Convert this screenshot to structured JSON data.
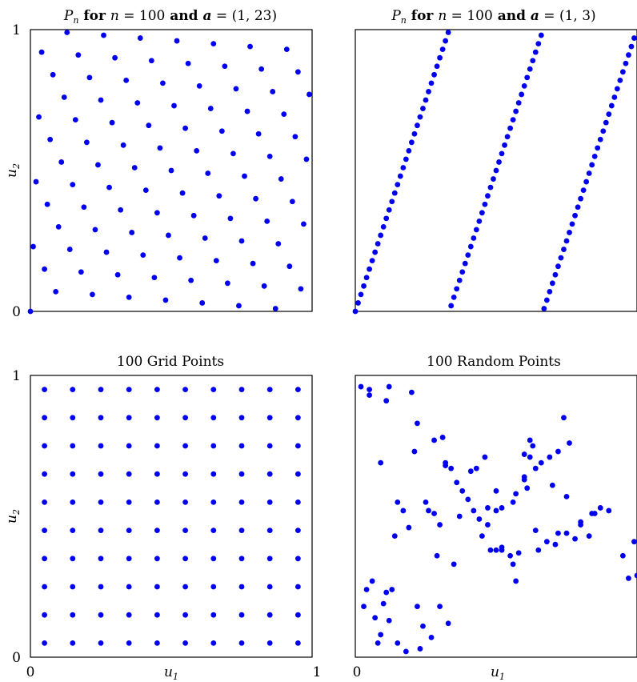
{
  "chart_data": [
    {
      "type": "scatter",
      "title": {
        "p": "P",
        "sub": "n",
        "for": " for ",
        "n": "n",
        "eq1": " = ",
        "nval": "100",
        "and": " and ",
        "a": "a",
        "eq2": " = ",
        "avec": "(1, 23)"
      },
      "xlabel": "",
      "ylabel": "u2",
      "xlim": [
        0,
        1
      ],
      "ylim": [
        0,
        1
      ],
      "xticks": [],
      "yticks": [
        "0",
        "1"
      ],
      "generator": {
        "n": 100,
        "a": [
          1,
          23
        ]
      },
      "grid": false,
      "legend": "none",
      "color": "#0000ee"
    },
    {
      "type": "scatter",
      "title": {
        "p": "P",
        "sub": "n",
        "for": " for ",
        "n": "n",
        "eq1": " = ",
        "nval": "100",
        "and": " and ",
        "a": "a",
        "eq2": " = ",
        "avec": "(1, 3)"
      },
      "xlabel": "",
      "ylabel": "",
      "xlim": [
        0,
        1
      ],
      "ylim": [
        0,
        1
      ],
      "xticks": [],
      "yticks": [],
      "generator": {
        "n": 100,
        "a": [
          1,
          3
        ]
      },
      "grid": false,
      "legend": "none",
      "color": "#0000ee"
    },
    {
      "type": "scatter",
      "title": {
        "text": "100 Grid Points"
      },
      "xlabel": "u1",
      "ylabel": "u2",
      "xlim": [
        0,
        1
      ],
      "ylim": [
        0,
        1
      ],
      "xticks": [
        "0",
        "1"
      ],
      "yticks": [
        "0",
        "1"
      ],
      "grid_axis_values": [
        0.05,
        0.15,
        0.25,
        0.35,
        0.45,
        0.55,
        0.65,
        0.75,
        0.85,
        0.95
      ],
      "grid": false,
      "legend": "none",
      "color": "#0000ee"
    },
    {
      "type": "scatter",
      "title": {
        "text": "100 Random Points"
      },
      "xlabel": "u1",
      "ylabel": "",
      "xlim": [
        0,
        1
      ],
      "ylim": [
        0,
        1
      ],
      "xticks": [
        "0"
      ],
      "yticks": [],
      "x": [
        0.02,
        0.05,
        0.05,
        0.12,
        0.11,
        0.09,
        0.15,
        0.17,
        0.19,
        0.21,
        0.22,
        0.2,
        0.28,
        0.31,
        0.32,
        0.34,
        0.36,
        0.38,
        0.41,
        0.4,
        0.42,
        0.3,
        0.28,
        0.26,
        0.25,
        0.14,
        0.06,
        0.04,
        0.03,
        0.13,
        0.1,
        0.07,
        0.22,
        0.11,
        0.12,
        0.09,
        0.08,
        0.15,
        0.18,
        0.23,
        0.27,
        0.24,
        0.33,
        0.3,
        0.35,
        0.37,
        0.44,
        0.47,
        0.5,
        0.52,
        0.55,
        0.58,
        0.57,
        0.6,
        0.6,
        0.61,
        0.64,
        0.66,
        0.63,
        0.62,
        0.69,
        0.7,
        0.72,
        0.74,
        0.76,
        0.75,
        0.8,
        0.85,
        0.83,
        0.84,
        0.87,
        0.9,
        0.95,
        1.0,
        0.97,
        0.99,
        0.8,
        0.78,
        0.75,
        0.72,
        0.71,
        0.68,
        0.65,
        0.64,
        0.56,
        0.52,
        0.5,
        0.52,
        0.48,
        0.45,
        0.47,
        0.5,
        0.56,
        0.57,
        0.6,
        0.62,
        0.46,
        0.43,
        0.32,
        0.29
      ],
      "y": [
        0.96,
        0.95,
        0.93,
        0.96,
        0.91,
        0.69,
        0.55,
        0.52,
        0.46,
        0.73,
        0.83,
        0.94,
        0.77,
        0.78,
        0.69,
        0.67,
        0.62,
        0.59,
        0.66,
        0.56,
        0.52,
        0.47,
        0.51,
        0.52,
        0.55,
        0.43,
        0.27,
        0.24,
        0.18,
        0.24,
        0.19,
        0.14,
        0.18,
        0.23,
        0.13,
        0.08,
        0.05,
        0.05,
        0.02,
        0.03,
        0.07,
        0.11,
        0.12,
        0.18,
        0.33,
        0.5,
        0.49,
        0.53,
        0.52,
        0.53,
        0.36,
        0.37,
        0.27,
        0.72,
        0.64,
        0.6,
        0.67,
        0.69,
        0.75,
        0.77,
        0.71,
        0.61,
        0.73,
        0.85,
        0.76,
        0.57,
        0.48,
        0.51,
        0.43,
        0.51,
        0.53,
        0.52,
        0.36,
        0.29,
        0.28,
        0.41,
        0.47,
        0.42,
        0.44,
        0.44,
        0.4,
        0.41,
        0.38,
        0.45,
        0.33,
        0.39,
        0.38,
        0.38,
        0.38,
        0.43,
        0.47,
        0.59,
        0.55,
        0.58,
        0.63,
        0.71,
        0.71,
        0.67,
        0.68,
        0.36
      ],
      "grid": false,
      "legend": "none",
      "color": "#0000ee"
    }
  ]
}
